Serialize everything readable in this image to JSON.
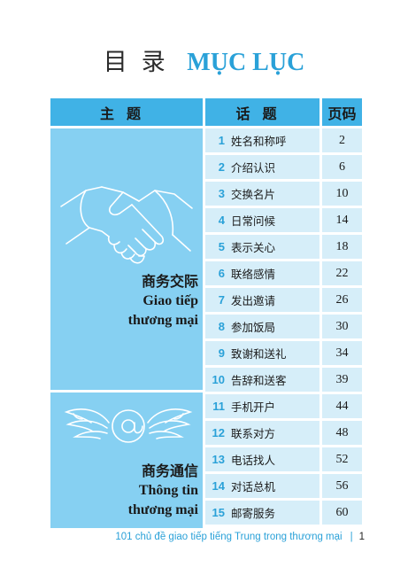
{
  "title": {
    "cn": "目录",
    "vn": "MỤC LỤC"
  },
  "headers": {
    "topic": "主题",
    "lesson": "话题",
    "page": "页码"
  },
  "sections": [
    {
      "cn": "商务交际",
      "vn1": "Giao tiếp",
      "vn2": "thương mại",
      "icon": "handshake-icon"
    },
    {
      "cn": "商务通信",
      "vn1": "Thông tin",
      "vn2": "thương mại",
      "icon": "winged-at-icon"
    }
  ],
  "lessons": [
    {
      "num": "1",
      "label": "姓名和称呼",
      "page": "2"
    },
    {
      "num": "2",
      "label": "介绍认识",
      "page": "6"
    },
    {
      "num": "3",
      "label": "交换名片",
      "page": "10"
    },
    {
      "num": "4",
      "label": "日常问候",
      "page": "14"
    },
    {
      "num": "5",
      "label": "表示关心",
      "page": "18"
    },
    {
      "num": "6",
      "label": "联络感情",
      "page": "22"
    },
    {
      "num": "7",
      "label": "发出邀请",
      "page": "26"
    },
    {
      "num": "8",
      "label": "参加饭局",
      "page": "30"
    },
    {
      "num": "9",
      "label": "致谢和送礼",
      "page": "34"
    },
    {
      "num": "10",
      "label": "告辞和送客",
      "page": "39"
    },
    {
      "num": "11",
      "label": "手机开户",
      "page": "44"
    },
    {
      "num": "12",
      "label": "联系对方",
      "page": "48"
    },
    {
      "num": "13",
      "label": "电话找人",
      "page": "52"
    },
    {
      "num": "14",
      "label": "对话总机",
      "page": "56"
    },
    {
      "num": "15",
      "label": "邮寄服务",
      "page": "60"
    }
  ],
  "footer": {
    "text": "101 chủ đề giao tiếp tiếng Trung trong thương mại",
    "bar": "|",
    "page": "1"
  },
  "colors": {
    "accent": "#2aa1d8",
    "header": "#40b2e6",
    "topic": "#86d0f2",
    "row": "#d6eef9"
  }
}
